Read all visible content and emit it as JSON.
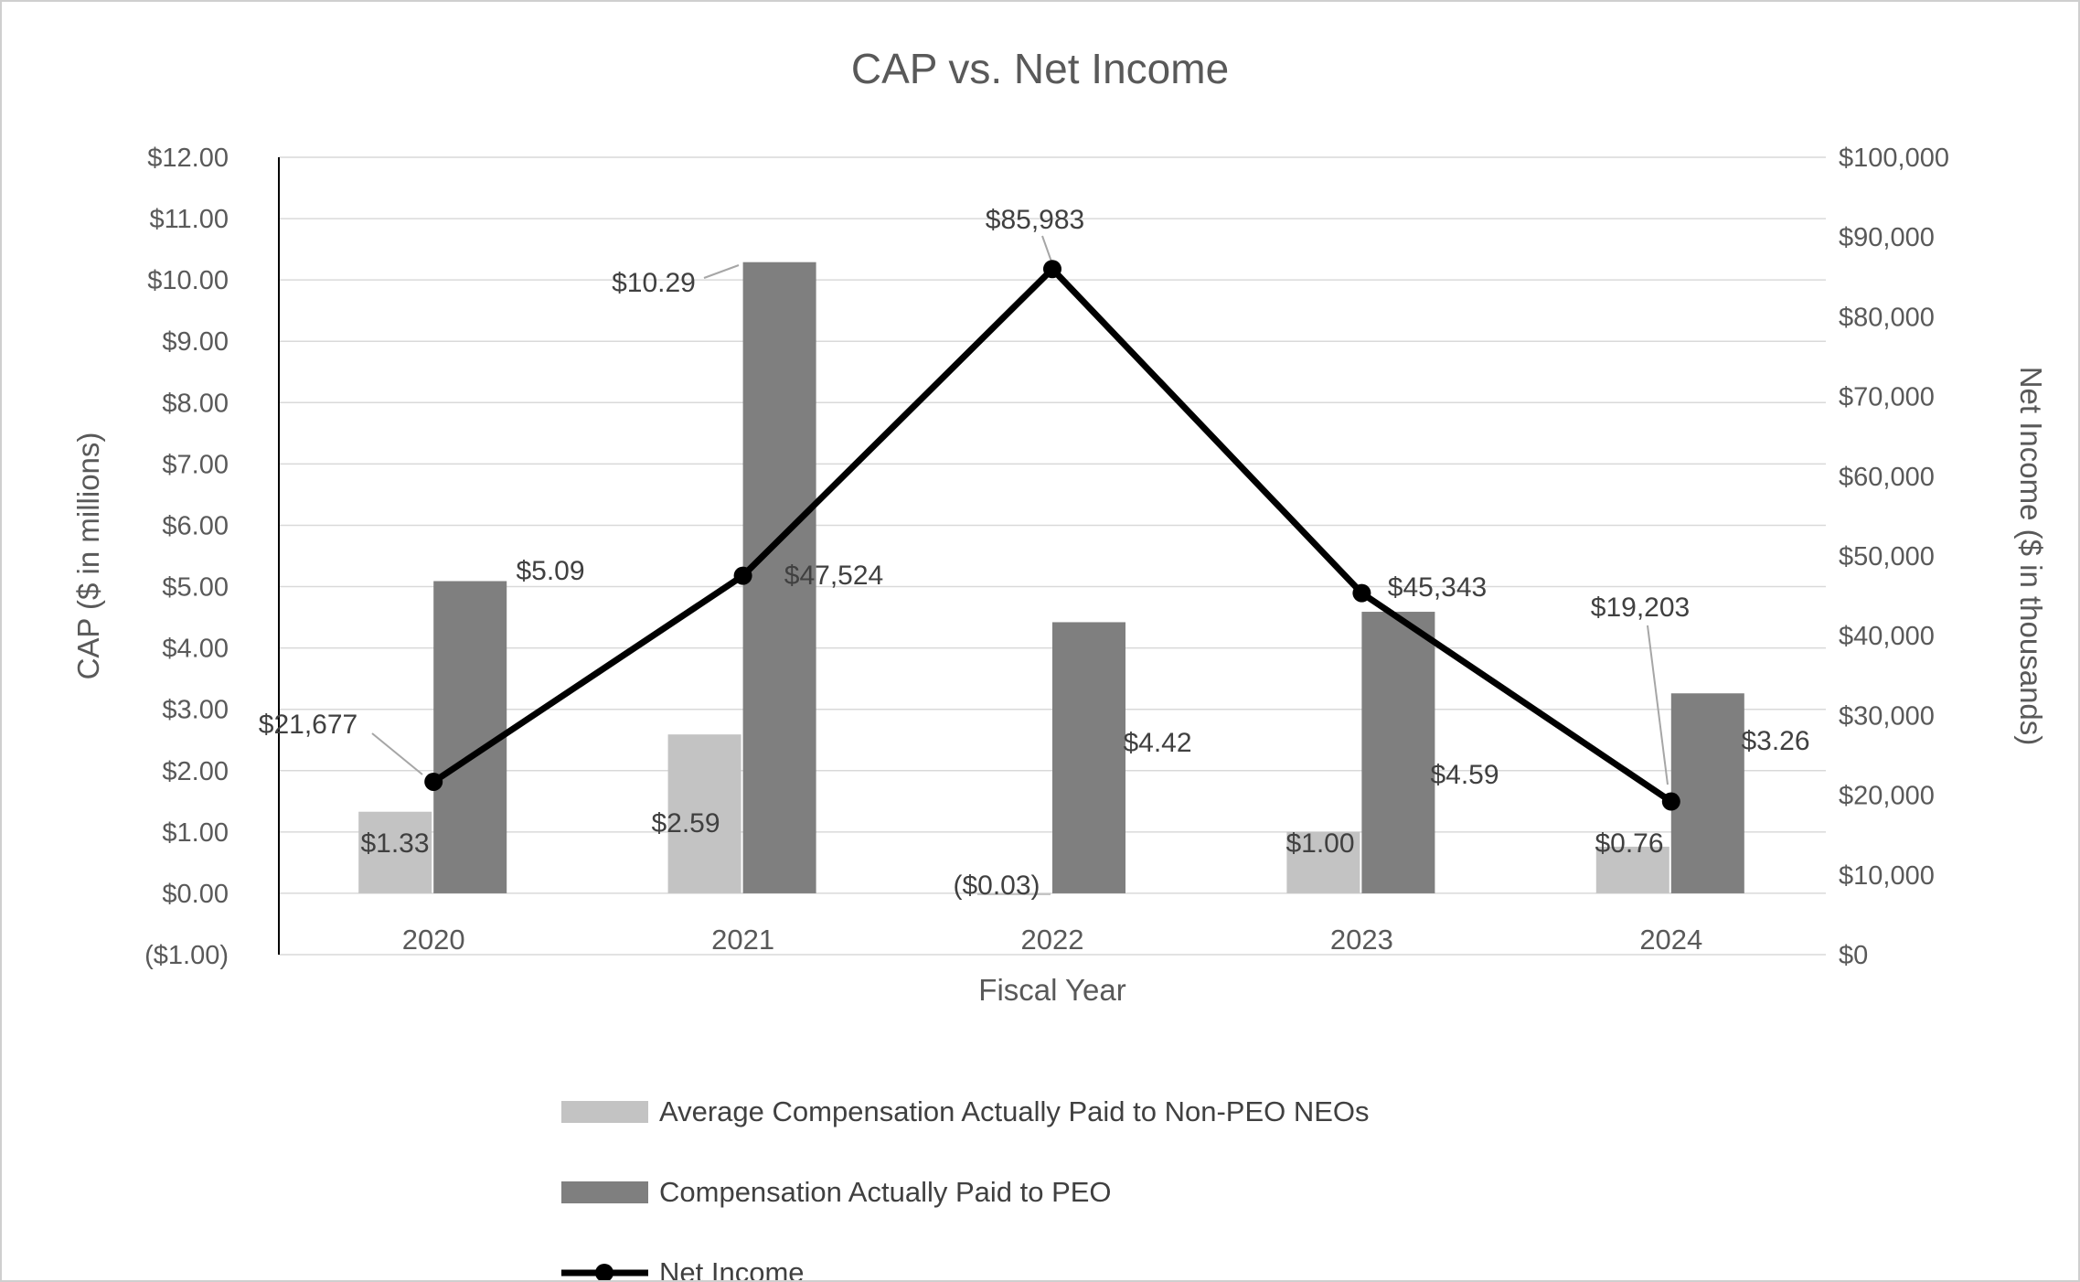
{
  "chart_data": {
    "type": "combo-bar-line",
    "title": "CAP vs. Net Income",
    "xlabel": "Fiscal Year",
    "ylabel_left": "CAP ($ in millions)",
    "ylabel_right": "Net Income ($ in thousands)",
    "categories": [
      "2020",
      "2021",
      "2022",
      "2023",
      "2024"
    ],
    "series": [
      {
        "name": "Average Compensation Actually Paid to Non-PEO NEOs",
        "type": "bar",
        "axis": "left",
        "color": "#c3c3c3",
        "values": [
          1.33,
          2.59,
          -0.03,
          1.0,
          0.76
        ],
        "labels": [
          "$1.33",
          "$2.59",
          "($0.03)",
          "$1.00",
          "$0.76"
        ]
      },
      {
        "name": "Compensation Actually Paid to PEO",
        "type": "bar",
        "axis": "left",
        "color": "#7f7f7f",
        "values": [
          5.09,
          10.29,
          4.42,
          4.59,
          3.26
        ],
        "labels": [
          "$5.09",
          "$10.29",
          "$4.42",
          "$4.59",
          "$3.26"
        ]
      },
      {
        "name": "Net Income",
        "type": "line",
        "axis": "right",
        "color": "#000000",
        "values": [
          21677,
          47524,
          85983,
          45343,
          19203
        ],
        "labels": [
          "$21,677",
          "$47,524",
          "$85,983",
          "$45,343",
          "$19,203"
        ]
      }
    ],
    "left_axis": {
      "min": -1,
      "max": 12,
      "step": 1,
      "tick_labels": [
        "($1.00)",
        "$0.00",
        "$1.00",
        "$2.00",
        "$3.00",
        "$4.00",
        "$5.00",
        "$6.00",
        "$7.00",
        "$8.00",
        "$9.00",
        "$10.00",
        "$11.00",
        "$12.00"
      ]
    },
    "right_axis": {
      "min": 0,
      "max": 100000,
      "step": 10000,
      "tick_labels": [
        "$0",
        "$10,000",
        "$20,000",
        "$30,000",
        "$40,000",
        "$50,000",
        "$60,000",
        "$70,000",
        "$80,000",
        "$90,000",
        "$100,000"
      ]
    },
    "grid": true,
    "legend_position": "bottom",
    "colors": {
      "grid": "#d9d9d9",
      "axis_line": "#000000",
      "tick_text": "#595959",
      "data_label_text": "#404040",
      "leader_line": "#a6a6a6"
    }
  }
}
